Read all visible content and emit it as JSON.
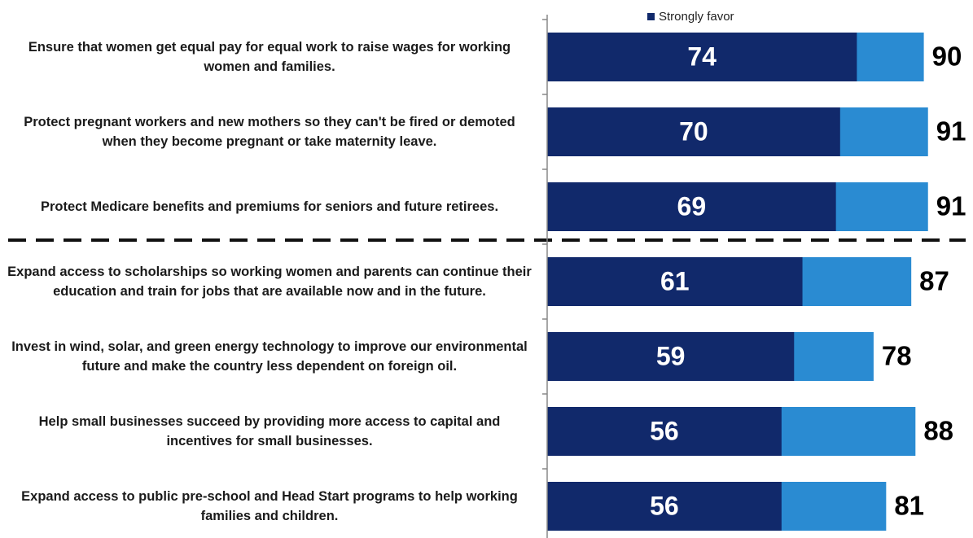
{
  "chart_data": {
    "type": "bar",
    "orientation": "horizontal",
    "categories": [
      "Ensure that women get equal pay for equal work to raise wages for working women and families.",
      "Protect pregnant workers and new mothers so they can't be fired or demoted when they become pregnant or take maternity leave.",
      "Protect Medicare benefits and premiums for seniors and future retirees.",
      "Expand access to scholarships so working women and parents can continue their education and train for jobs that are available now and in the future.",
      "Invest in wind, solar, and green energy technology to improve our environmental future and make the country less dependent on foreign oil.",
      "Help small businesses succeed by providing more access to capital and incentives for small businesses.",
      "Expand access to public pre-school and Head Start programs to help working families and children."
    ],
    "series": [
      {
        "name": "Strongly favor",
        "color": "#11296b",
        "values": [
          74,
          70,
          69,
          61,
          59,
          56,
          56
        ]
      },
      {
        "color": "#2a8bd2",
        "values": [
          90,
          91,
          91,
          87,
          78,
          88,
          81
        ]
      }
    ],
    "xlim": [
      0,
      100
    ]
  }
}
